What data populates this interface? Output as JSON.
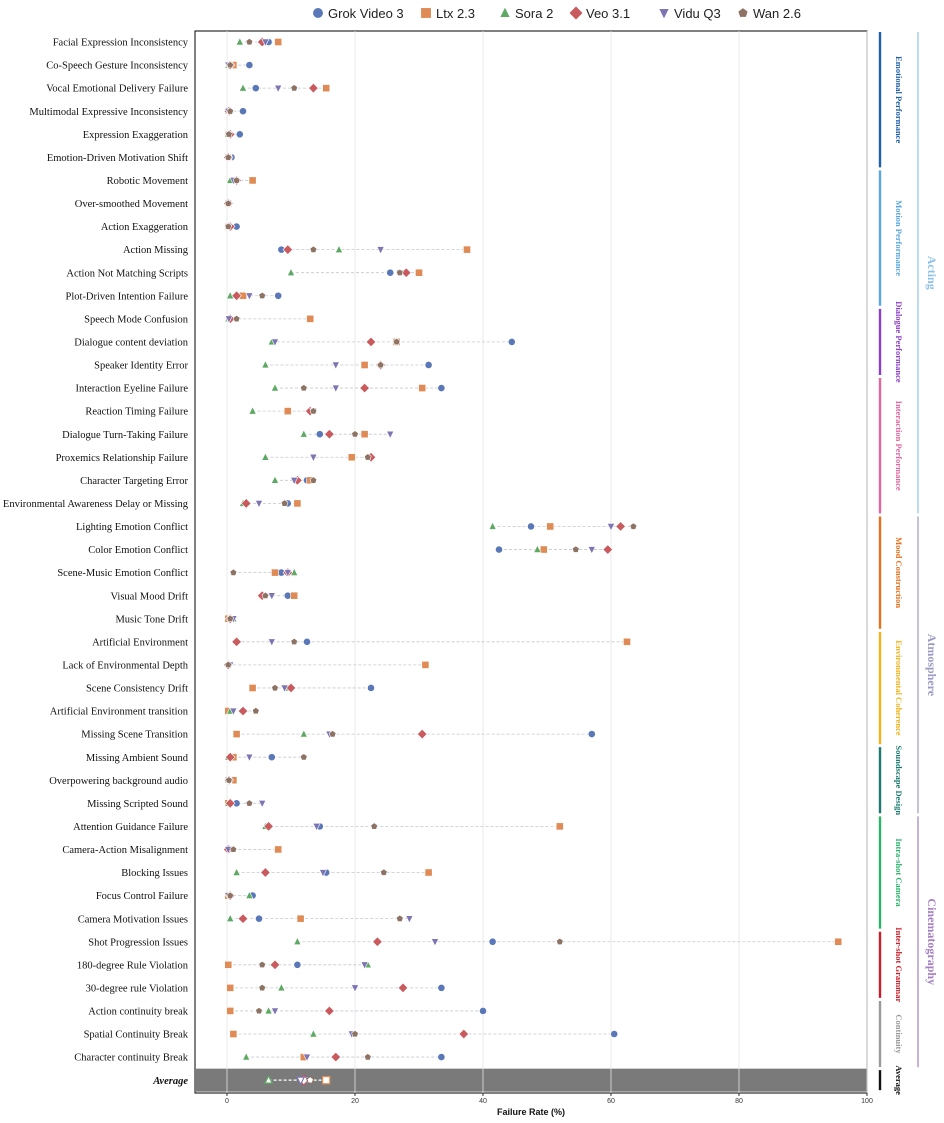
{
  "chart_data": {
    "type": "scatter",
    "xlabel": "Failure Rate (%)",
    "xlim": [
      -5,
      100
    ],
    "xticks": [
      0,
      20,
      40,
      60,
      80,
      100
    ],
    "grid": true,
    "legend_position": "top",
    "series": [
      {
        "name": "Grok Video 3",
        "color": "#5a78b8",
        "marker": "circle"
      },
      {
        "name": "Ltx 2.3",
        "color": "#e08b55",
        "marker": "square"
      },
      {
        "name": "Sora 2",
        "color": "#5da964",
        "marker": "triangle-up"
      },
      {
        "name": "Veo 3.1",
        "color": "#c95a5e",
        "marker": "diamond"
      },
      {
        "name": "Vidu Q3",
        "color": "#7d74b2",
        "marker": "triangle-down"
      },
      {
        "name": "Wan 2.6",
        "color": "#8c7364",
        "marker": "pentagon"
      }
    ],
    "rows": [
      {
        "label": "Facial Expression Inconsistency",
        "values": [
          6.5,
          8.0,
          2.0,
          5.5,
          6.0,
          3.5
        ]
      },
      {
        "label": "Co-Speech Gesture Inconsistency",
        "values": [
          3.5,
          1.0,
          0.2,
          0.5,
          0.2,
          0.5
        ]
      },
      {
        "label": "Vocal Emotional Delivery Failure",
        "values": [
          4.5,
          15.5,
          2.5,
          13.5,
          8.0,
          10.5
        ]
      },
      {
        "label": "Multimodal Expressive Inconsistency",
        "values": [
          2.5,
          0.2,
          0.2,
          0.3,
          0.2,
          0.5
        ]
      },
      {
        "label": "Expression Exaggeration",
        "values": [
          2.0,
          0.2,
          0.2,
          0.5,
          0.3,
          0.3
        ]
      },
      {
        "label": "Emotion-Driven Motivation Shift",
        "values": [
          0.7,
          0.2,
          0.2,
          0.2,
          0.2,
          0.2
        ]
      },
      {
        "label": "Robotic Movement",
        "values": [
          1.0,
          4.0,
          0.5,
          1.5,
          1.0,
          1.5
        ]
      },
      {
        "label": "Over-smoothed Movement",
        "values": [
          0.2,
          0.2,
          0.2,
          0.2,
          0.2,
          0.2
        ]
      },
      {
        "label": "Action Exaggeration",
        "values": [
          1.5,
          0.2,
          0.2,
          0.5,
          0.3,
          0.2
        ]
      },
      {
        "label": "Action Missing",
        "values": [
          8.5,
          37.5,
          17.5,
          9.5,
          24.0,
          13.5
        ]
      },
      {
        "label": "Action Not Matching Scripts",
        "values": [
          25.5,
          30.0,
          10.0,
          28.0,
          27.0,
          27.0
        ]
      },
      {
        "label": "Plot-Driven Intention Failure",
        "values": [
          8.0,
          2.5,
          0.5,
          1.5,
          3.5,
          5.5
        ]
      },
      {
        "label": "Speech Mode Confusion",
        "values": [
          0.5,
          13.0,
          0.2,
          0.5,
          0.3,
          1.5
        ]
      },
      {
        "label": "Dialogue content deviation",
        "values": [
          44.5,
          26.5,
          7.0,
          22.5,
          7.5,
          26.5
        ]
      },
      {
        "label": "Speaker Identity Error",
        "values": [
          31.5,
          21.5,
          6.0,
          24.0,
          17.0,
          24.0
        ]
      },
      {
        "label": "Interaction Eyeline Failure",
        "values": [
          33.5,
          30.5,
          7.5,
          21.5,
          17.0,
          12.0
        ]
      },
      {
        "label": "Reaction Timing Failure",
        "values": [
          13.5,
          9.5,
          4.0,
          13.0,
          13.5,
          13.5
        ]
      },
      {
        "label": "Dialogue Turn-Taking Failure",
        "values": [
          14.5,
          21.5,
          12.0,
          16.0,
          25.5,
          20.0
        ]
      },
      {
        "label": "Proxemics Relationship Failure",
        "values": [
          22.5,
          19.5,
          6.0,
          22.5,
          13.5,
          22.0
        ]
      },
      {
        "label": "Character Targeting Error",
        "values": [
          12.5,
          13.0,
          7.5,
          11.0,
          10.5,
          13.5
        ]
      },
      {
        "label": "Environmental Awareness Delay or Missing",
        "values": [
          9.5,
          11.0,
          2.5,
          3.0,
          5.0,
          9.0
        ]
      },
      {
        "label": "Lighting Emotion Conflict",
        "values": [
          47.5,
          50.5,
          41.5,
          61.5,
          60.0,
          63.5
        ]
      },
      {
        "label": "Color Emotion Conflict",
        "values": [
          42.5,
          49.5,
          48.5,
          59.5,
          57.0,
          54.5
        ]
      },
      {
        "label": "Scene-Music Emotion Conflict",
        "values": [
          8.5,
          7.5,
          10.5,
          9.5,
          9.5,
          1.0
        ]
      },
      {
        "label": "Visual Mood Drift",
        "values": [
          9.5,
          10.5,
          5.5,
          5.5,
          7.0,
          6.0
        ]
      },
      {
        "label": "Music Tone Drift",
        "values": [
          0.5,
          0.2,
          1.0,
          0.5,
          1.0,
          0.5
        ]
      },
      {
        "label": "Artificial Environment",
        "values": [
          12.5,
          62.5,
          1.5,
          1.5,
          7.0,
          10.5
        ]
      },
      {
        "label": "Lack of Environmental Depth",
        "values": [
          0.2,
          31.0,
          0.2,
          0.2,
          0.5,
          0.2
        ]
      },
      {
        "label": "Scene Consistency Drift",
        "values": [
          22.5,
          4.0,
          9.5,
          10.0,
          9.0,
          7.5
        ]
      },
      {
        "label": "Artificial Environment transition",
        "values": [
          0.5,
          0.2,
          0.5,
          2.5,
          1.0,
          4.5
        ]
      },
      {
        "label": "Missing Scene Transition",
        "values": [
          57.0,
          1.5,
          12.0,
          30.5,
          16.0,
          16.5
        ]
      },
      {
        "label": "Missing Ambient Sound",
        "values": [
          7.0,
          1.0,
          0.2,
          0.5,
          3.5,
          12.0
        ]
      },
      {
        "label": "Overpowering background audio",
        "values": [
          0.2,
          1.0,
          0.2,
          0.3,
          0.2,
          0.3
        ]
      },
      {
        "label": "Missing Scripted Sound",
        "values": [
          1.5,
          0.2,
          0.2,
          0.5,
          5.5,
          3.5
        ]
      },
      {
        "label": "Attention Guidance Failure",
        "values": [
          14.5,
          52.0,
          6.0,
          6.5,
          14.0,
          23.0
        ]
      },
      {
        "label": "Camera-Action Misalignment",
        "values": [
          0.2,
          8.0,
          0.2,
          0.2,
          0.2,
          1.0
        ]
      },
      {
        "label": "Blocking Issues",
        "values": [
          15.5,
          31.5,
          1.5,
          6.0,
          15.0,
          24.5
        ]
      },
      {
        "label": "Focus Control Failure",
        "values": [
          4.0,
          0.2,
          3.5,
          0.5,
          0.2,
          0.5
        ]
      },
      {
        "label": "Camera Motivation Issues",
        "values": [
          5.0,
          11.5,
          0.5,
          2.5,
          28.5,
          27.0
        ]
      },
      {
        "label": "Shot Progression Issues",
        "values": [
          41.5,
          95.5,
          11.0,
          23.5,
          32.5,
          52.0
        ]
      },
      {
        "label": "180-degree Rule Violation",
        "values": [
          11.0,
          0.2,
          22.0,
          7.5,
          21.5,
          5.5
        ]
      },
      {
        "label": "30-degree rule Violation",
        "values": [
          33.5,
          0.5,
          8.5,
          27.5,
          20.0,
          5.5
        ]
      },
      {
        "label": "Action continuity break",
        "values": [
          40.0,
          0.5,
          6.5,
          16.0,
          7.5,
          5.0
        ]
      },
      {
        "label": "Spatial Continuity Break",
        "values": [
          60.5,
          1.0,
          13.5,
          37.0,
          19.5,
          20.0
        ]
      },
      {
        "label": "Character continuity Break",
        "values": [
          33.5,
          12.0,
          3.0,
          17.0,
          12.5,
          22.0
        ]
      }
    ],
    "average": {
      "label": "Average",
      "values": [
        12.5,
        15.5,
        6.5,
        12.0,
        11.5,
        13.0
      ]
    },
    "subcategories": [
      {
        "label": "Emotional Performance",
        "color": "#1f5fa8",
        "start": 0,
        "end": 5
      },
      {
        "label": "Motion Performance",
        "color": "#5aa7e0",
        "start": 6,
        "end": 11
      },
      {
        "label": "Dialogue Performance",
        "color": "#8a3fc6",
        "start": 12,
        "end": 14
      },
      {
        "label": "Interaction Performance",
        "color": "#e0669e",
        "start": 15,
        "end": 20
      },
      {
        "label": "Mood Construction",
        "color": "#e86f1e",
        "start": 21,
        "end": 25
      },
      {
        "label": "Environmental Coherence",
        "color": "#f2b21c",
        "start": 26,
        "end": 30
      },
      {
        "label": "Soundscape Design",
        "color": "#1e7a70",
        "start": 31,
        "end": 33
      },
      {
        "label": "Intra-shot Camera",
        "color": "#2db36c",
        "start": 34,
        "end": 38
      },
      {
        "label": "Inter-shot Grammar",
        "color": "#c8202a",
        "start": 39,
        "end": 41
      },
      {
        "label": "Continuity",
        "color": "#999999",
        "start": 42,
        "end": 44
      },
      {
        "label": "Average",
        "color": "#111111",
        "start": 45,
        "end": 45
      }
    ],
    "groups": [
      {
        "label": "Acting",
        "color": "#8fc1e6",
        "start": 0,
        "end": 20
      },
      {
        "label": "Atmosphere",
        "color": "#9b9bc4",
        "start": 21,
        "end": 33
      },
      {
        "label": "Cinematography",
        "color": "#a57fc2",
        "start": 34,
        "end": 44
      }
    ]
  }
}
